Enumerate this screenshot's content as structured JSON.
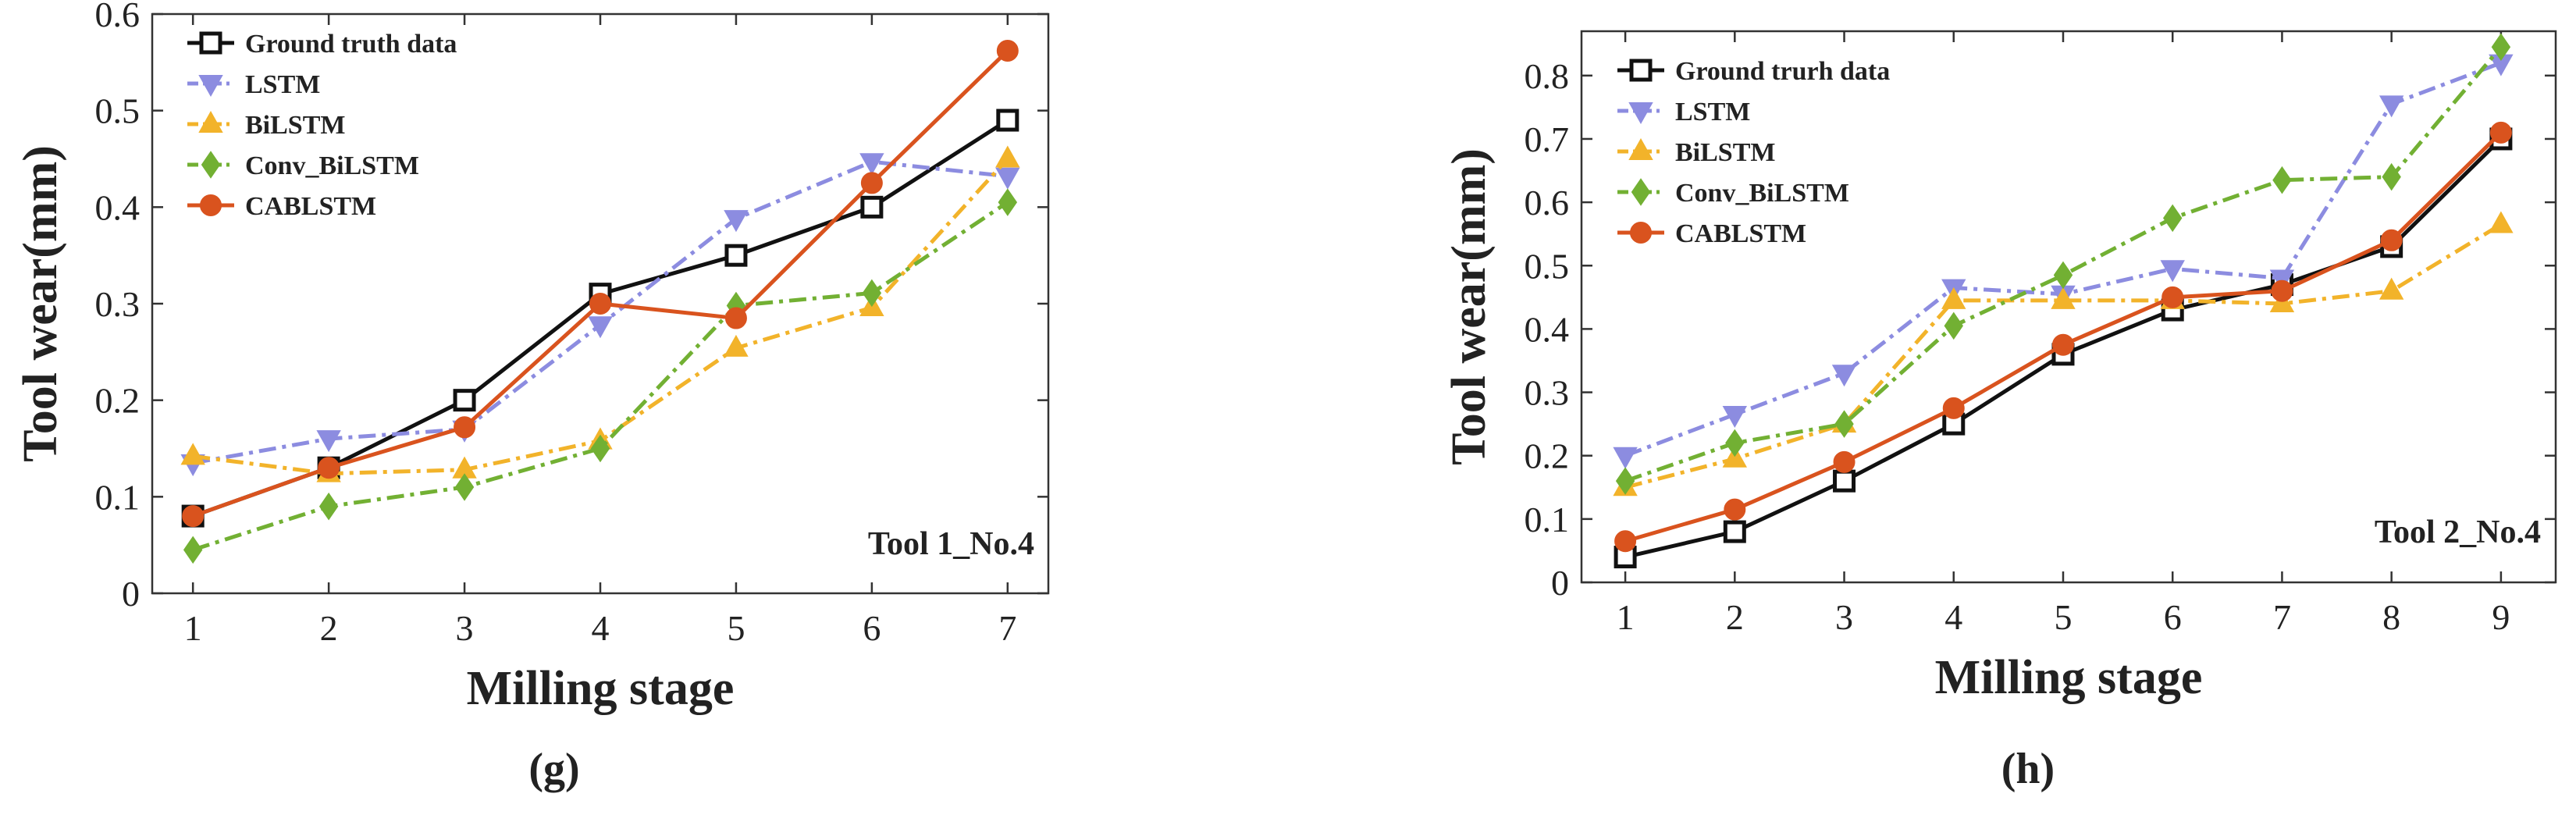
{
  "chart_data": [
    {
      "type": "line",
      "panel": "g",
      "caption": "(g)",
      "annotation": "Tool 1_No.4",
      "xlabel": "Milling stage",
      "ylabel": "Tool wear(mm)",
      "x": [
        1,
        2,
        3,
        4,
        5,
        6,
        7
      ],
      "x_ticks": [
        "1",
        "2",
        "3",
        "4",
        "5",
        "6",
        "7"
      ],
      "xlim": [
        0.7,
        7.3
      ],
      "ylim": [
        0,
        0.6
      ],
      "y_ticks": [
        "0",
        "0.1",
        "0.2",
        "0.3",
        "0.4",
        "0.5",
        "0.6"
      ],
      "legend_position": "top-left",
      "series": [
        {
          "name": "Ground truth data",
          "color": "#111111",
          "marker": "square",
          "dash": "solid",
          "values": [
            0.08,
            0.13,
            0.2,
            0.31,
            0.35,
            0.4,
            0.49
          ]
        },
        {
          "name": "LSTM",
          "color": "#8c8ce0",
          "marker": "triangle-down",
          "dash": "dashdot",
          "values": [
            0.135,
            0.16,
            0.17,
            0.278,
            0.388,
            0.447,
            0.432
          ]
        },
        {
          "name": "BiLSTM",
          "color": "#f2b32a",
          "marker": "triangle-up",
          "dash": "dashdot",
          "values": [
            0.142,
            0.124,
            0.128,
            0.158,
            0.254,
            0.296,
            0.45
          ]
        },
        {
          "name": "Conv_BiLSTM",
          "color": "#72b033",
          "marker": "diamond",
          "dash": "dashdot",
          "values": [
            0.045,
            0.09,
            0.11,
            0.15,
            0.298,
            0.311,
            0.405
          ]
        },
        {
          "name": "CABLSTM",
          "color": "#d9531e",
          "marker": "circle",
          "dash": "solid",
          "values": [
            0.08,
            0.13,
            0.172,
            0.3,
            0.285,
            0.425,
            0.562
          ]
        }
      ]
    },
    {
      "type": "line",
      "panel": "h",
      "caption": "(h)",
      "annotation": "Tool 2_No.4",
      "xlabel": "Milling stage",
      "ylabel": "Tool wear(mm)",
      "x": [
        1,
        2,
        3,
        4,
        5,
        6,
        7,
        8,
        9
      ],
      "x_ticks": [
        "1",
        "2",
        "3",
        "4",
        "5",
        "6",
        "7",
        "8",
        "9"
      ],
      "xlim": [
        0.6,
        9.5
      ],
      "ylim": [
        0,
        0.87
      ],
      "y_ticks": [
        "0",
        "0.1",
        "0.2",
        "0.3",
        "0.4",
        "0.5",
        "0.6",
        "0.7",
        "0.8"
      ],
      "legend_position": "top-left",
      "series": [
        {
          "name": "Ground trurh data",
          "color": "#111111",
          "marker": "square",
          "dash": "solid",
          "values": [
            0.04,
            0.08,
            0.16,
            0.25,
            0.36,
            0.43,
            0.47,
            0.53,
            0.7
          ]
        },
        {
          "name": "LSTM",
          "color": "#8c8ce0",
          "marker": "triangle-down",
          "dash": "dashdot",
          "values": [
            0.2,
            0.265,
            0.33,
            0.465,
            0.455,
            0.495,
            0.48,
            0.755,
            0.82
          ]
        },
        {
          "name": "BiLSTM",
          "color": "#f2b32a",
          "marker": "triangle-up",
          "dash": "dashdot",
          "values": [
            0.15,
            0.195,
            0.25,
            0.445,
            0.445,
            0.445,
            0.44,
            0.46,
            0.565
          ]
        },
        {
          "name": "Conv_BiLSTM",
          "color": "#72b033",
          "marker": "diamond",
          "dash": "dashdot",
          "values": [
            0.16,
            0.22,
            0.25,
            0.405,
            0.485,
            0.575,
            0.635,
            0.64,
            0.845
          ]
        },
        {
          "name": "CABLSTM",
          "color": "#d9531e",
          "marker": "circle",
          "dash": "solid",
          "values": [
            0.065,
            0.115,
            0.19,
            0.275,
            0.375,
            0.45,
            0.46,
            0.54,
            0.71
          ]
        }
      ]
    }
  ]
}
